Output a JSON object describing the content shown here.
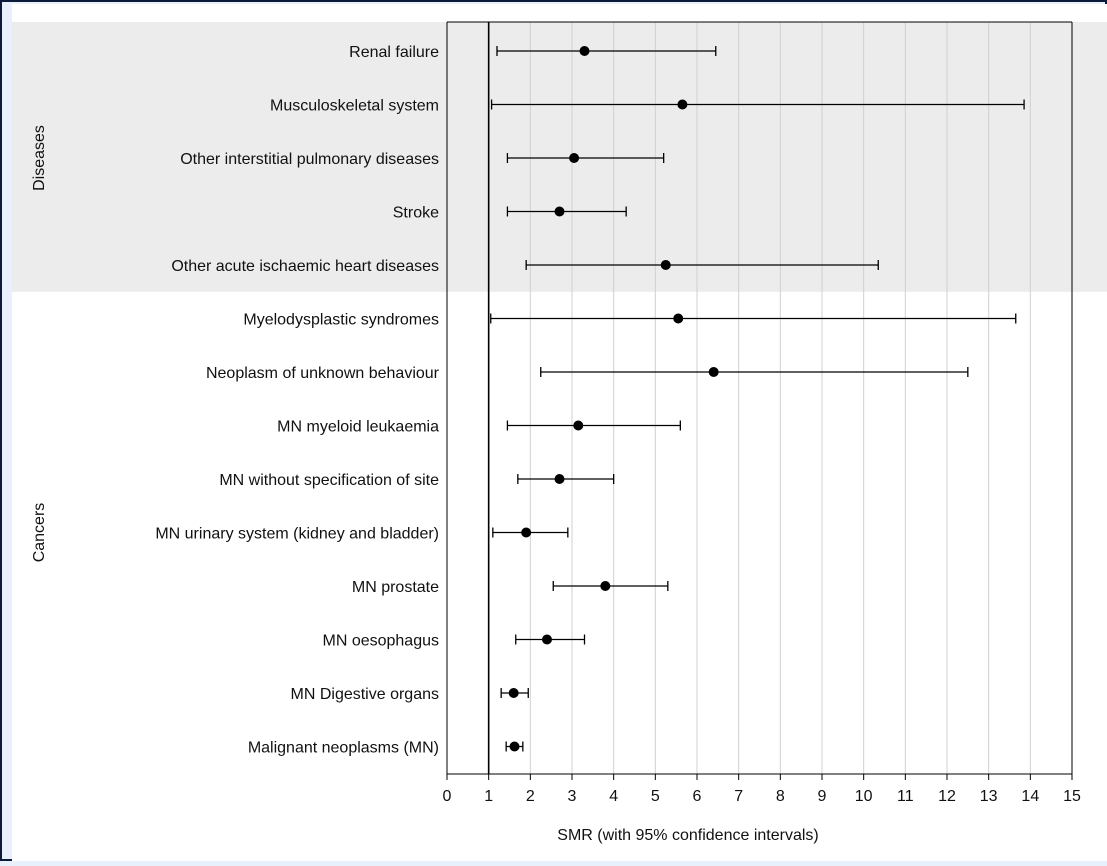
{
  "chart_data": {
    "type": "forest",
    "xlabel": "SMR (with 95% confidence intervals)",
    "xlim": [
      0,
      15
    ],
    "xticks": [
      0,
      1,
      2,
      3,
      4,
      5,
      6,
      7,
      8,
      9,
      10,
      11,
      12,
      13,
      14,
      15
    ],
    "reference_line": 1,
    "grid": true,
    "groups": [
      {
        "label": "Diseases",
        "shaded": true,
        "shade_color": "#ececec",
        "rows": [
          {
            "label": "Renal failure",
            "smr": 3.3,
            "lo": 1.2,
            "hi": 6.45
          },
          {
            "label": "Musculoskeletal system",
            "smr": 5.65,
            "lo": 1.07,
            "hi": 13.85
          },
          {
            "label": "Other interstitial pulmonary diseases",
            "smr": 3.05,
            "lo": 1.45,
            "hi": 5.2
          },
          {
            "label": "Stroke",
            "smr": 2.7,
            "lo": 1.45,
            "hi": 4.3
          },
          {
            "label": "Other acute ischaemic heart diseases",
            "smr": 5.25,
            "lo": 1.9,
            "hi": 10.35
          }
        ]
      },
      {
        "label": "Cancers",
        "shaded": false,
        "rows": [
          {
            "label": "Myelodysplastic syndromes",
            "smr": 5.55,
            "lo": 1.05,
            "hi": 13.65
          },
          {
            "label": "Neoplasm of unknown behaviour",
            "smr": 6.4,
            "lo": 2.25,
            "hi": 12.5
          },
          {
            "label": "MN myeloid leukaemia",
            "smr": 3.15,
            "lo": 1.45,
            "hi": 5.6
          },
          {
            "label": "MN without specification of site",
            "smr": 2.7,
            "lo": 1.7,
            "hi": 4.0
          },
          {
            "label": "MN urinary system (kidney and bladder)",
            "smr": 1.9,
            "lo": 1.1,
            "hi": 2.9
          },
          {
            "label": "MN prostate",
            "smr": 3.8,
            "lo": 2.55,
            "hi": 5.3
          },
          {
            "label": "MN oesophagus",
            "smr": 2.4,
            "lo": 1.65,
            "hi": 3.3
          },
          {
            "label": "MN Digestive organs",
            "smr": 1.6,
            "lo": 1.3,
            "hi": 1.95
          },
          {
            "label": "Malignant neoplasms (MN)",
            "smr": 1.62,
            "lo": 1.42,
            "hi": 1.82
          }
        ]
      }
    ],
    "colors": {
      "marker": "#000000",
      "grid": "#d0d0d0",
      "axis": "#000000"
    }
  }
}
